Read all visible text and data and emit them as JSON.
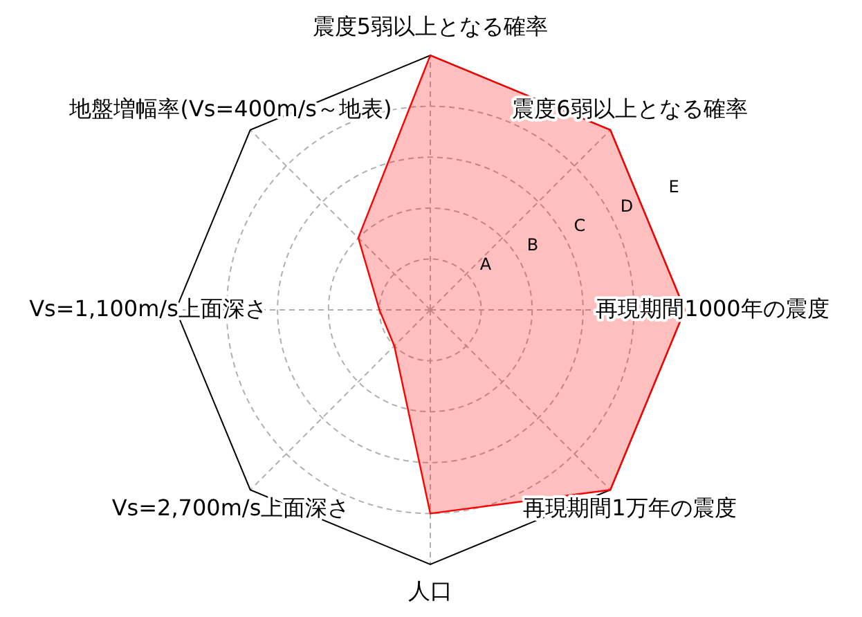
{
  "chart_data": {
    "type": "radar",
    "categories": [
      "震度5弱以上となる確率",
      "震度6弱以上となる確率",
      "再現期間1000年の震度",
      "再現期間1万年の震度",
      "人口",
      "Vs=2,700m/s上面深さ",
      "Vs=1,100m/s上面深さ",
      "地盤増幅率(Vs=400m/s～地表)"
    ],
    "series": [
      {
        "color": "#ff0000",
        "values": [
          5,
          5,
          5,
          5,
          4,
          1,
          1,
          2
        ]
      }
    ],
    "ylim": [
      0,
      5
    ],
    "yticks": [
      {
        "value": 1,
        "label": "A"
      },
      {
        "value": 2,
        "label": "B"
      },
      {
        "value": 3,
        "label": "C"
      },
      {
        "value": 4,
        "label": "D"
      },
      {
        "value": 5,
        "label": "E"
      }
    ],
    "grid": true
  }
}
